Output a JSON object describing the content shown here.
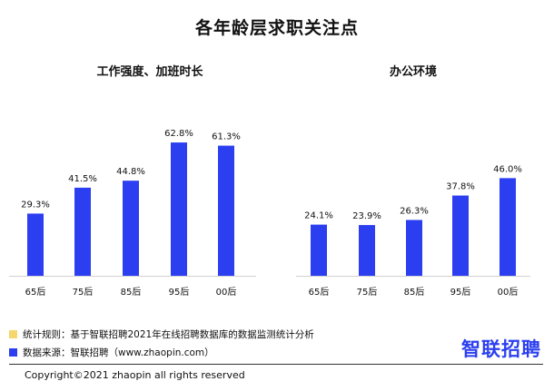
{
  "title": "各年龄层求职关注点",
  "legend": {
    "rule_label": "统计规则：基于智联招聘2021年在线招聘数据库的数据监测统计分析",
    "source_label": "数据来源：智联招聘（www.zhaopin.com）",
    "rule_color": "#f5d76e",
    "source_color": "#2b3ff0"
  },
  "logo": "智联招聘",
  "copyright": "Copyright©2021 zhaopin  all rights reserved",
  "chart_data": [
    {
      "type": "bar",
      "title": "工作强度、加班时长",
      "categories": [
        "65后",
        "75后",
        "85后",
        "95后",
        "00后"
      ],
      "values": [
        29.3,
        41.5,
        44.8,
        62.8,
        61.3
      ],
      "value_labels": [
        "29.3%",
        "41.5%",
        "44.8%",
        "62.8%",
        "61.3%"
      ],
      "color": "#2b3ff0",
      "ylim": [
        0,
        100
      ]
    },
    {
      "type": "bar",
      "title": "办公环境",
      "categories": [
        "65后",
        "75后",
        "85后",
        "95后",
        "00后"
      ],
      "values": [
        24.1,
        23.9,
        26.3,
        37.8,
        46.0
      ],
      "value_labels": [
        "24.1%",
        "23.9%",
        "26.3%",
        "37.8%",
        "46.0%"
      ],
      "color": "#2b3ff0",
      "ylim": [
        0,
        100
      ]
    }
  ]
}
